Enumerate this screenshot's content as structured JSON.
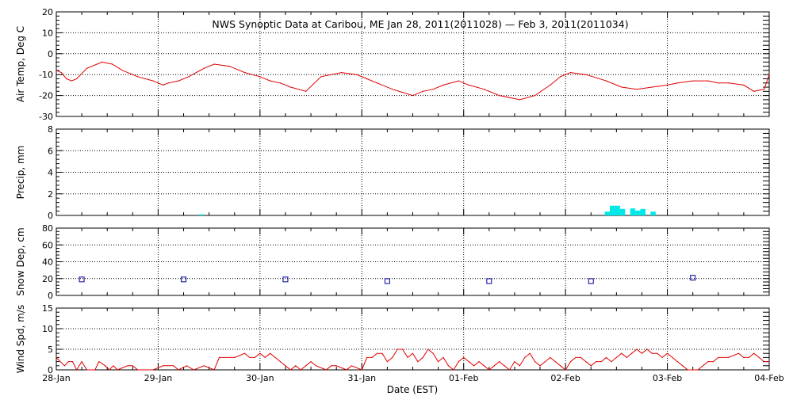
{
  "title": "NWS Synoptic Data at Caribou, ME    Jan 28, 2011(2011028) — Feb  3, 2011(2011034)",
  "xlabel": "Date (EST)",
  "x_ticks": [
    "28-Jan",
    "29-Jan",
    "30-Jan",
    "31-Jan",
    "01-Feb",
    "02-Feb",
    "03-Feb",
    "04-Feb"
  ],
  "colors": {
    "temp": "#e00000",
    "precip": "#00e8e8",
    "snow": "#00009c",
    "wind": "#e00000",
    "axis": "#000000"
  },
  "chart_data": [
    {
      "type": "line",
      "ylabel": "Air Temp, Deg C",
      "ylim": [
        -30,
        20
      ],
      "yticks": [
        "20",
        "10",
        "0",
        "-10",
        "-20",
        "-30"
      ],
      "x_unit": "days after 28-Jan 00:00",
      "series": [
        {
          "x": [
            0,
            0.05,
            0.1,
            0.15,
            0.2,
            0.3,
            0.45,
            0.55,
            0.65,
            0.8,
            0.95,
            1.05,
            1.1,
            1.2,
            1.3,
            1.45,
            1.55,
            1.7,
            1.85,
            2.0,
            2.1,
            2.2,
            2.3,
            2.45,
            2.6,
            2.8,
            2.95,
            3.05,
            3.15,
            3.3,
            3.5,
            3.6,
            3.7,
            3.8,
            3.95,
            4.05,
            4.2,
            4.35,
            4.55,
            4.7,
            4.85,
            4.95,
            5.05,
            5.2,
            5.4,
            5.55,
            5.7,
            5.85,
            6.0,
            6.1,
            6.25,
            6.4,
            6.5,
            6.6,
            6.75,
            6.85,
            6.95,
            7.0
          ],
          "y": [
            -8,
            -9,
            -12,
            -13,
            -12,
            -7,
            -4,
            -5,
            -8,
            -11,
            -13,
            -15,
            -14,
            -13,
            -11,
            -7,
            -5,
            -6,
            -9,
            -11,
            -13,
            -14,
            -16,
            -18,
            -11,
            -9,
            -10,
            -12,
            -14,
            -17,
            -20,
            -18,
            -17,
            -15,
            -13,
            -15,
            -17,
            -20,
            -22,
            -20,
            -15,
            -11,
            -9,
            -10,
            -13,
            -16,
            -17,
            -16,
            -15,
            -14,
            -13,
            -13,
            -14,
            -14,
            -15,
            -18,
            -17,
            -10
          ]
        }
      ]
    },
    {
      "type": "bar",
      "ylabel": "Precip, mm",
      "ylim": [
        0,
        8
      ],
      "yticks": [
        "8",
        "6",
        "4",
        "2",
        "0"
      ],
      "x_unit": "days after 28-Jan 00:00",
      "x": [
        1.42,
        5.41,
        5.46,
        5.51,
        5.56,
        5.61,
        5.66,
        5.71,
        5.76,
        5.81,
        5.86
      ],
      "values": [
        0.1,
        0.35,
        0.9,
        0.9,
        0.6,
        0.0,
        0.65,
        0.45,
        0.6,
        0.0,
        0.35
      ]
    },
    {
      "type": "scatter",
      "ylabel": "Snow Dep, cm",
      "ylim": [
        0,
        80
      ],
      "yticks": [
        "80",
        "60",
        "40",
        "20",
        "0"
      ],
      "x_unit": "days after 28-Jan 00:00",
      "x": [
        0.25,
        1.25,
        2.25,
        3.25,
        4.25,
        5.25,
        6.25
      ],
      "values": [
        19,
        19,
        19,
        17,
        17,
        17,
        21
      ]
    },
    {
      "type": "line",
      "ylabel": "Wind Spd, m/s",
      "ylim": [
        0,
        15
      ],
      "yticks": [
        "15",
        "10",
        "5",
        "0"
      ],
      "x_unit": "days after 28-Jan 00:00",
      "series": [
        {
          "x": [
            0,
            0.08,
            0.12,
            0.16,
            0.2,
            0.25,
            0.3,
            0.38,
            0.42,
            0.48,
            0.52,
            0.56,
            0.6,
            0.7,
            0.75,
            0.8,
            0.85,
            0.95,
            1.05,
            1.15,
            1.2,
            1.28,
            1.35,
            1.45,
            1.55,
            1.6,
            1.65,
            1.75,
            1.85,
            1.9,
            1.95,
            2.0,
            2.05,
            2.1,
            2.15,
            2.2,
            2.25,
            2.3,
            2.35,
            2.4,
            2.45,
            2.5,
            2.55,
            2.65,
            2.7,
            2.75,
            2.85,
            2.9,
            3.0,
            3.05,
            3.1,
            3.15,
            3.2,
            3.25,
            3.3,
            3.35,
            3.4,
            3.45,
            3.5,
            3.55,
            3.6,
            3.65,
            3.7,
            3.75,
            3.8,
            3.85,
            3.9,
            3.95,
            4.0,
            4.05,
            4.1,
            4.15,
            4.2,
            4.25,
            4.3,
            4.35,
            4.4,
            4.45,
            4.5,
            4.55,
            4.6,
            4.65,
            4.7,
            4.75,
            4.8,
            4.85,
            4.9,
            4.95,
            5.0,
            5.05,
            5.1,
            5.15,
            5.2,
            5.25,
            5.3,
            5.35,
            5.4,
            5.45,
            5.5,
            5.55,
            5.6,
            5.65,
            5.7,
            5.75,
            5.8,
            5.85,
            5.9,
            5.95,
            6.0,
            6.05,
            6.1,
            6.15,
            6.2,
            6.25,
            6.3,
            6.4,
            6.45,
            6.5,
            6.6,
            6.7,
            6.75,
            6.8,
            6.85,
            6.9,
            6.95,
            7.0
          ],
          "y": [
            3,
            1,
            2,
            2,
            0,
            2,
            0,
            0,
            2,
            1,
            0,
            1,
            0,
            1,
            1,
            0,
            0,
            0,
            1,
            1,
            0,
            1,
            0,
            1,
            0,
            3,
            3,
            3,
            4,
            3,
            3,
            4,
            3,
            4,
            3,
            2,
            1,
            0,
            1,
            0,
            1,
            2,
            1,
            0,
            1,
            1,
            0,
            1,
            0,
            3,
            3,
            4,
            4,
            2,
            3,
            5,
            5,
            3,
            4,
            2,
            3,
            5,
            4,
            2,
            3,
            1,
            0,
            2,
            3,
            2,
            1,
            2,
            1,
            0,
            1,
            2,
            1,
            0,
            2,
            1,
            3,
            4,
            2,
            1,
            2,
            3,
            2,
            1,
            0,
            2,
            3,
            3,
            2,
            1,
            2,
            2,
            3,
            2,
            3,
            4,
            3,
            4,
            5,
            4,
            5,
            4,
            4,
            3,
            4,
            3,
            2,
            1,
            0,
            0,
            0,
            2,
            2,
            3,
            3,
            4,
            3,
            3,
            4,
            3,
            2,
            2
          ]
        }
      ]
    }
  ]
}
